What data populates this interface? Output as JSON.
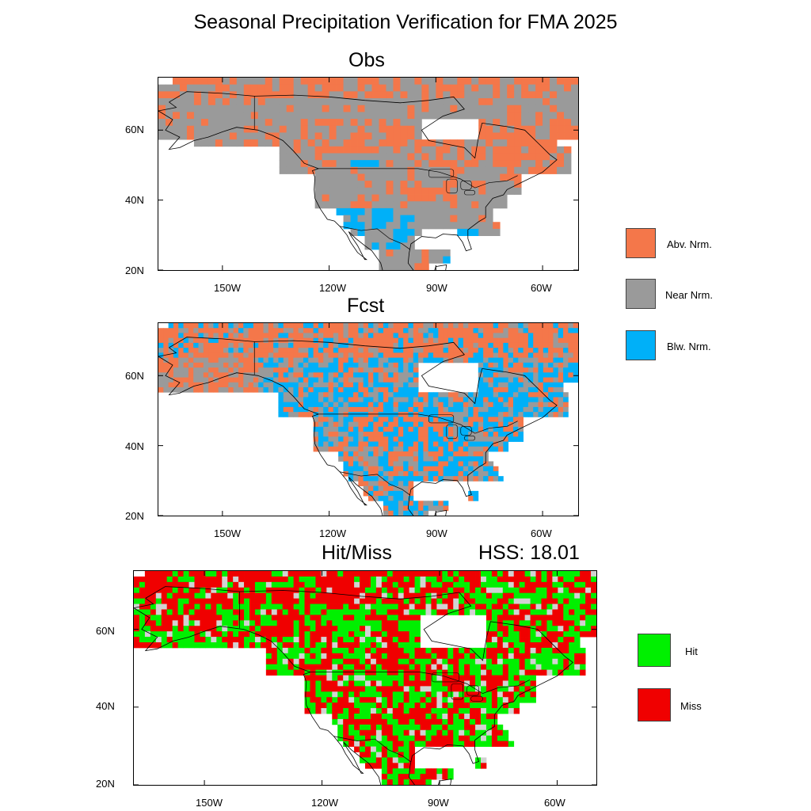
{
  "title": "Seasonal Precipitation Verification for FMA 2025",
  "panels": {
    "obs": {
      "title": "Obs"
    },
    "fcst": {
      "title": "Fcst"
    },
    "hitmiss": {
      "title": "Hit/Miss",
      "hss_label": "HSS: 18.01",
      "hss": 18.01
    }
  },
  "axes": {
    "lat_labels": [
      "60N",
      "40N",
      "20N"
    ],
    "lon_labels": [
      "150W",
      "120W",
      "90W",
      "60W"
    ]
  },
  "legend_top": [
    {
      "label": "Abv. Nrm.",
      "color": "#f4774a"
    },
    {
      "label": "Near Nrm.",
      "color": "#9a9a9a"
    },
    {
      "label": "Blw. Nrm.",
      "color": "#00b0f8"
    }
  ],
  "legend_bottom": [
    {
      "label": "Hit",
      "color": "#00f000"
    },
    {
      "label": "Miss",
      "color": "#f00000"
    }
  ],
  "colors": {
    "above": "#f4774a",
    "near": "#9a9a9a",
    "below": "#00b0f8",
    "nodata": "#d2d2d2",
    "hit": "#00f000",
    "miss": "#f00000"
  }
}
